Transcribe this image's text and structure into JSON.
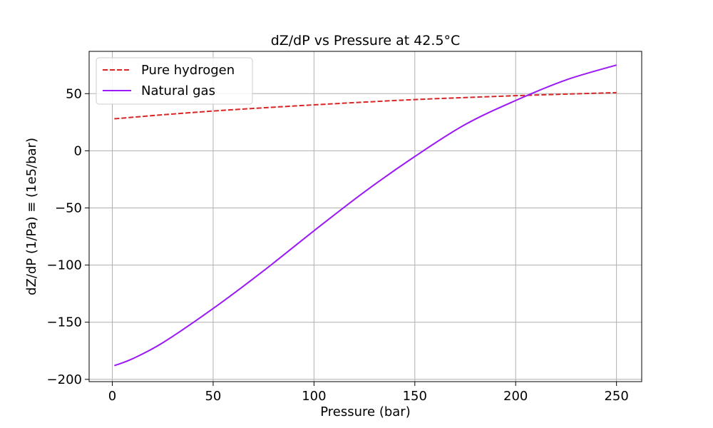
{
  "chart_data": {
    "type": "line",
    "title": "dZ/dP  vs Pressure at 42.5°C",
    "xlabel": "Pressure (bar)",
    "ylabel": "dZ/dP (1/Pa) ≡ (1e5/bar)",
    "xlim": [
      -11.5,
      262.5
    ],
    "ylim": [
      -202,
      87
    ],
    "xticks": [
      0,
      50,
      100,
      150,
      200,
      250
    ],
    "yticks": [
      -200,
      -150,
      -100,
      -50,
      0,
      50
    ],
    "xtick_labels": [
      "0",
      "50",
      "100",
      "150",
      "200",
      "250"
    ],
    "ytick_labels": [
      "−200",
      "−150",
      "−100",
      "−50",
      "0",
      "50"
    ],
    "grid": true,
    "legend_position": "upper-left",
    "series": [
      {
        "name": "Pure hydrogen",
        "color": "#d62728",
        "line_style": "dashed",
        "x": [
          1,
          25,
          50,
          75,
          100,
          125,
          150,
          175,
          200,
          225,
          250
        ],
        "y": [
          28,
          31.5,
          34.8,
          37.6,
          40.2,
          42.6,
          44.8,
          46.6,
          48.2,
          49.6,
          50.9
        ]
      },
      {
        "name": "Natural gas",
        "color": "#9b19f5",
        "line_style": "solid",
        "x": [
          1,
          10,
          25,
          50,
          75,
          100,
          125,
          150,
          175,
          200,
          225,
          250
        ],
        "y": [
          -188,
          -182,
          -168,
          -138,
          -105,
          -70,
          -36,
          -5,
          23,
          44,
          62,
          75
        ]
      }
    ]
  }
}
